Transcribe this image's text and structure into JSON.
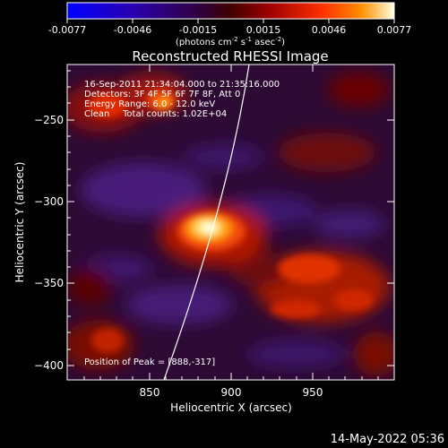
{
  "colorbar": {
    "tick_labels": [
      "-0.0077",
      "-0.0046",
      "-0.0015",
      "0.0015",
      "0.0046",
      "0.0077"
    ],
    "unit_label_parts": [
      "(photons cm",
      "-2",
      " s",
      "-1",
      " asec",
      "-2",
      ")"
    ]
  },
  "title": "Reconstructed RHESSI Image",
  "info": {
    "time_range": "16-Sep-2011 21:34:04.000 to 21:35:16.000",
    "detectors": "Detectors: 3F 4F 5F 6F 7F 8F, Att 0",
    "energy": "Energy Range: 6.0 - 12.0 keV",
    "clean": "Clean",
    "total_counts": "Total counts: 1.02E+04",
    "peak": "Position of Peak = [888,-317]"
  },
  "axes": {
    "xlabel": "Heliocentric X (arcsec)",
    "ylabel": "Heliocentric Y (arcsec)",
    "x_ticks": [
      "850",
      "900",
      "950"
    ],
    "y_ticks": [
      "−250",
      "−300",
      "−350",
      "−400"
    ]
  },
  "timestamp": "14-May-2022 05:36"
}
